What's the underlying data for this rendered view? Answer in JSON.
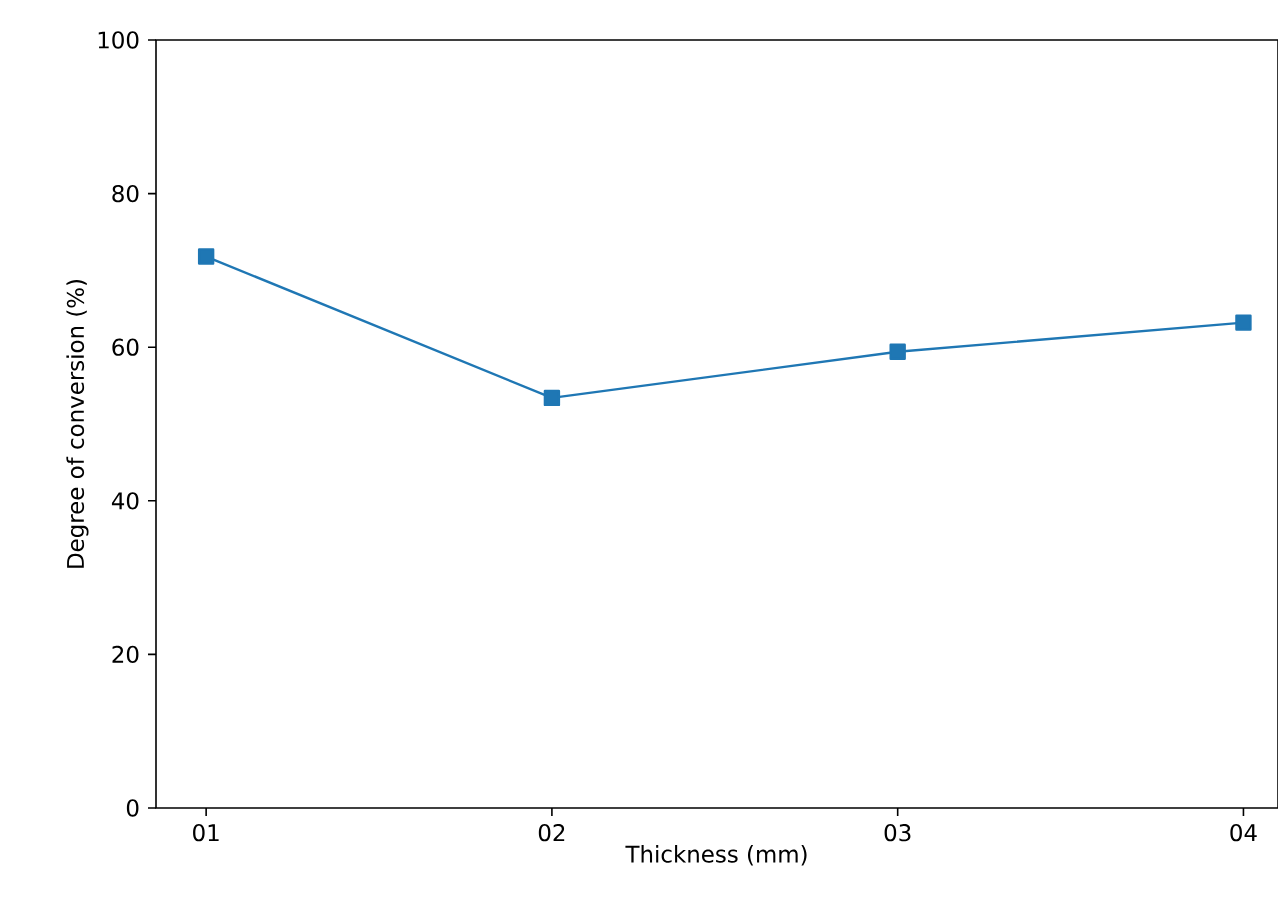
{
  "chart_data": {
    "type": "line",
    "xlabel": "Thickness (mm)",
    "ylabel": "Degree of conversion (%)",
    "categories": [
      "01",
      "02",
      "03",
      "04"
    ],
    "series": [
      {
        "color": "#1f77b4",
        "values": [
          71.8,
          53.4,
          59.4,
          63.2
        ]
      }
    ],
    "marker": "square",
    "line_style": "solid",
    "ylim": [
      0,
      100
    ],
    "yticks": [
      0,
      20,
      40,
      60,
      80,
      100
    ]
  }
}
